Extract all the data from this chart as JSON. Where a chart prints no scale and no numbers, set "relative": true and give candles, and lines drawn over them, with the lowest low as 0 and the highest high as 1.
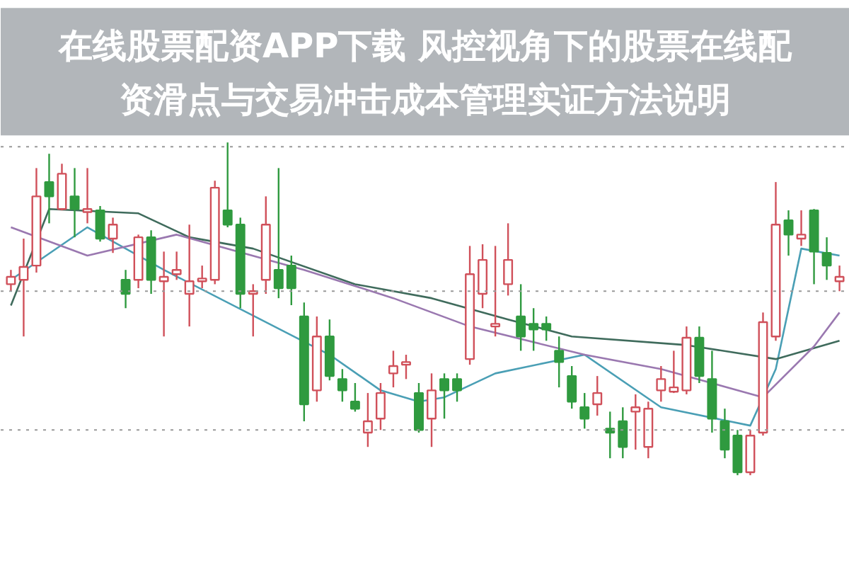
{
  "chart_data": {
    "type": "candlestick",
    "title": "在线股票配资APP下载 风控视角下的股票在线配资滑点与交易冲击成本管理实证方法说明",
    "relative": true,
    "grid": false,
    "categories": [
      null,
      null,
      null,
      null,
      null,
      null,
      null,
      null,
      null,
      null,
      null,
      null,
      null,
      null,
      null,
      null,
      null,
      null,
      null,
      null,
      null,
      null,
      null,
      null,
      null,
      null,
      null,
      null,
      null,
      null,
      null,
      null,
      null,
      null,
      null,
      null,
      null,
      null,
      null,
      null,
      null,
      null,
      null,
      null,
      null,
      null,
      null,
      null,
      null,
      null,
      null,
      null,
      null,
      null,
      null,
      null,
      null,
      null,
      null,
      null,
      null,
      null,
      null,
      null,
      null,
      null
    ],
    "ohlc": [
      [
        0.574,
        0.617,
        0.553,
        0.596
      ],
      [
        0.587,
        0.711,
        0.417,
        0.626
      ],
      [
        0.63,
        0.923,
        0.609,
        0.838
      ],
      [
        0.881,
        0.966,
        0.757,
        0.838
      ],
      [
        0.8,
        0.936,
        0.796,
        0.906
      ],
      [
        0.838,
        0.923,
        0.715,
        0.8
      ],
      [
        0.791,
        0.923,
        0.757,
        0.8
      ],
      [
        0.796,
        0.809,
        0.702,
        0.711
      ],
      [
        0.711,
        0.774,
        0.668,
        0.753
      ],
      [
        0.587,
        0.617,
        0.502,
        0.545
      ],
      [
        0.587,
        0.723,
        0.562,
        0.715
      ],
      [
        0.715,
        0.736,
        0.545,
        0.587
      ],
      [
        0.583,
        0.672,
        0.417,
        0.596
      ],
      [
        0.604,
        0.672,
        0.587,
        0.617
      ],
      [
        0.545,
        0.753,
        0.447,
        0.583
      ],
      [
        0.583,
        0.63,
        0.562,
        0.591
      ],
      [
        0.587,
        0.885,
        0.574,
        0.864
      ],
      [
        0.796,
        1.0,
        0.745,
        0.753
      ],
      [
        0.753,
        0.774,
        0.502,
        0.545
      ],
      [
        0.545,
        0.574,
        0.417,
        0.553
      ],
      [
        0.587,
        0.838,
        0.545,
        0.753
      ],
      [
        0.617,
        0.923,
        0.532,
        0.562
      ],
      [
        0.63,
        0.66,
        0.511,
        0.562
      ],
      [
        0.477,
        0.519,
        0.162,
        0.213
      ],
      [
        0.255,
        0.477,
        0.221,
        0.417
      ],
      [
        0.417,
        0.468,
        0.285,
        0.298
      ],
      [
        0.289,
        0.319,
        0.221,
        0.255
      ],
      [
        0.221,
        0.277,
        0.191,
        0.2
      ],
      [
        0.128,
        0.247,
        0.085,
        0.162
      ],
      [
        0.17,
        0.277,
        0.136,
        0.247
      ],
      [
        0.306,
        0.374,
        0.264,
        0.328
      ],
      [
        0.332,
        0.362,
        0.289,
        0.34
      ],
      [
        0.247,
        0.277,
        0.128,
        0.136
      ],
      [
        0.17,
        0.306,
        0.085,
        0.255
      ],
      [
        0.289,
        0.306,
        0.17,
        0.255
      ],
      [
        0.289,
        0.306,
        0.221,
        0.255
      ],
      [
        0.349,
        0.689,
        0.332,
        0.604
      ],
      [
        0.545,
        0.694,
        0.502,
        0.647
      ],
      [
        0.447,
        0.689,
        0.417,
        0.455
      ],
      [
        0.574,
        0.757,
        0.54,
        0.647
      ],
      [
        0.477,
        0.574,
        0.374,
        0.417
      ],
      [
        0.455,
        0.502,
        0.374,
        0.438
      ],
      [
        0.455,
        0.477,
        0.404,
        0.438
      ],
      [
        0.374,
        0.417,
        0.264,
        0.34
      ],
      [
        0.298,
        0.328,
        0.2,
        0.221
      ],
      [
        0.204,
        0.247,
        0.14,
        0.17
      ],
      [
        0.213,
        0.298,
        0.179,
        0.247
      ],
      [
        0.14,
        0.191,
        0.051,
        0.128
      ],
      [
        0.162,
        0.204,
        0.051,
        0.085
      ],
      [
        0.191,
        0.243,
        0.077,
        0.204
      ],
      [
        0.085,
        0.221,
        0.051,
        0.2
      ],
      [
        0.255,
        0.328,
        0.221,
        0.289
      ],
      [
        0.251,
        0.374,
        0.247,
        0.264
      ],
      [
        0.255,
        0.447,
        0.243,
        0.413
      ],
      [
        0.413,
        0.447,
        0.277,
        0.298
      ],
      [
        0.289,
        0.374,
        0.128,
        0.17
      ],
      [
        0.162,
        0.2,
        0.051,
        0.077
      ],
      [
        0.119,
        0.136,
        0,
        0.009
      ],
      [
        0.009,
        0.136,
        0,
        0.119
      ],
      [
        0.128,
        0.489,
        0.119,
        0.46
      ],
      [
        0.417,
        0.881,
        0.404,
        0.753
      ],
      [
        0.766,
        0.796,
        0.66,
        0.723
      ],
      [
        0.711,
        0.796,
        0.689,
        0.723
      ],
      [
        0.796,
        0.8,
        0.574,
        0.672
      ],
      [
        0.668,
        0.715,
        0.587,
        0.63
      ],
      [
        0.583,
        0.63,
        0.553,
        0.596
      ]
    ],
    "colors": [
      "#d0505a",
      "#d0505a",
      "#d0505a",
      "#2f9a3f",
      "#d0505a",
      "#2f9a3f",
      "#d0505a",
      "#2f9a3f",
      "#d0505a",
      "#2f9a3f",
      "#d0505a",
      "#2f9a3f",
      "#d0505a",
      "#d0505a",
      "#d0505a",
      "#d0505a",
      "#d0505a",
      "#2f9a3f",
      "#2f9a3f",
      "#d0505a",
      "#d0505a",
      "#2f9a3f",
      "#2f9a3f",
      "#2f9a3f",
      "#d0505a",
      "#2f9a3f",
      "#2f9a3f",
      "#2f9a3f",
      "#d0505a",
      "#d0505a",
      "#d0505a",
      "#d0505a",
      "#2f9a3f",
      "#d0505a",
      "#2f9a3f",
      "#2f9a3f",
      "#d0505a",
      "#d0505a",
      "#d0505a",
      "#d0505a",
      "#2f9a3f",
      "#2f9a3f",
      "#2f9a3f",
      "#2f9a3f",
      "#2f9a3f",
      "#2f9a3f",
      "#d0505a",
      "#2f9a3f",
      "#2f9a3f",
      "#d0505a",
      "#d0505a",
      "#d0505a",
      "#d0505a",
      "#d0505a",
      "#2f9a3f",
      "#2f9a3f",
      "#2f9a3f",
      "#2f9a3f",
      "#d0505a",
      "#d0505a",
      "#d0505a",
      "#2f9a3f",
      "#d0505a",
      "#2f9a3f",
      "#2f9a3f",
      "#d0505a"
    ],
    "series": [
      {
        "type": "line",
        "color": "#4a9fb5",
        "values": [
          0.587,
          null,
          null,
          null,
          null,
          null,
          0.745,
          null,
          null,
          null,
          null,
          null,
          0.617,
          null,
          null,
          null,
          null,
          null,
          null,
          null,
          null,
          null,
          null,
          null,
          null,
          0.362,
          null,
          null,
          null,
          0.255,
          null,
          null,
          0.221,
          null,
          0.234,
          null,
          null,
          null,
          0.306,
          null,
          null,
          null,
          null,
          null,
          null,
          0.362,
          null,
          null,
          null,
          null,
          null,
          0.204,
          null,
          null,
          null,
          null,
          null,
          null,
          0.149,
          null,
          0.319,
          null,
          0.681,
          null,
          null,
          0.66
        ]
      },
      {
        "type": "line",
        "color": "#3f6b5c",
        "values": [
          0.51,
          null,
          null,
          0.8,
          null,
          null,
          null,
          null,
          null,
          null,
          0.787,
          null,
          null,
          null,
          0.715,
          null,
          null,
          null,
          null,
          0.681,
          null,
          null,
          null,
          null,
          null,
          null,
          null,
          0.574,
          null,
          null,
          null,
          null,
          null,
          0.532,
          null,
          null,
          null,
          null,
          null,
          0.468,
          null,
          null,
          null,
          null,
          0.417,
          null,
          null,
          null,
          null,
          null,
          null,
          null,
          null,
          0.391,
          null,
          null,
          null,
          null,
          null,
          null,
          0.349,
          null,
          null,
          null,
          null,
          0.404
        ]
      },
      {
        "type": "line",
        "color": "#9a78b0",
        "values": [
          0.745,
          null,
          null,
          null,
          null,
          null,
          0.66,
          null,
          null,
          null,
          null,
          null,
          null,
          0.723,
          null,
          null,
          null,
          null,
          null,
          null,
          null,
          null,
          null,
          0.617,
          null,
          null,
          null,
          null,
          null,
          null,
          0.532,
          null,
          null,
          null,
          null,
          null,
          0.447,
          null,
          null,
          null,
          null,
          null,
          null,
          null,
          null,
          0.362,
          null,
          null,
          null,
          null,
          null,
          0.319,
          null,
          null,
          null,
          null,
          null,
          null,
          null,
          0.234,
          null,
          null,
          null,
          0.387,
          null,
          0.489
        ]
      }
    ],
    "ref_lines": [
      {
        "axis": "y",
        "value": 0.987,
        "color": "#999999",
        "line_style": "dotted"
      },
      {
        "axis": "y",
        "value": 0.553,
        "color": "#999999",
        "line_style": "dotted"
      },
      {
        "axis": "y",
        "value": 0.136,
        "color": "#999999",
        "line_style": "dotted"
      }
    ]
  }
}
